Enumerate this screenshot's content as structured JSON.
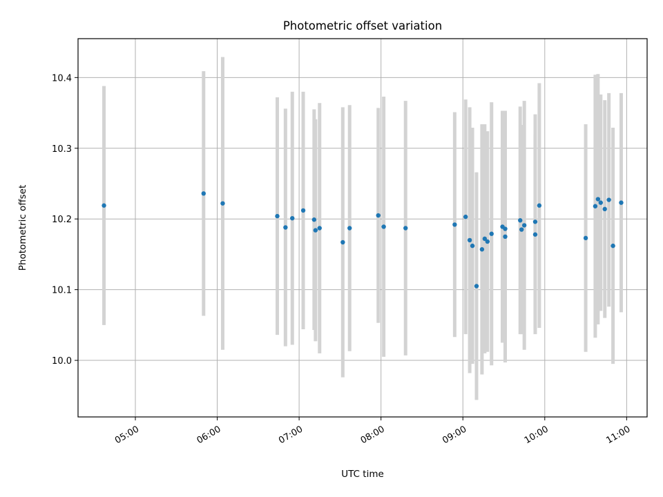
{
  "chart_data": {
    "type": "scatter",
    "title": "Photometric offset variation",
    "xlabel": "UTC time",
    "ylabel": "Photometric offset",
    "x_unit": "UTC time (HH:MM)",
    "xlim": [
      "04:18",
      "11:15"
    ],
    "ylim": [
      9.92,
      10.455
    ],
    "x_ticks": [
      "05:00",
      "06:00",
      "07:00",
      "08:00",
      "09:00",
      "10:00",
      "11:00"
    ],
    "y_ticks": [
      10.0,
      10.1,
      10.2,
      10.3,
      10.4
    ],
    "y_tick_labels": [
      "10.0",
      "10.1",
      "10.2",
      "10.3",
      "10.4"
    ],
    "grid": true,
    "x_tick_rotation_deg": 30,
    "colors": {
      "points": "#1f77b4",
      "error_bars": "#d3d3d3",
      "grid": "#b0b0b0",
      "axes": "#000000"
    },
    "series": [
      {
        "x": [
          "04:37",
          "05:50",
          "06:04",
          "06:44",
          "06:50",
          "06:55",
          "07:03",
          "07:11",
          "07:12",
          "07:15",
          "07:32",
          "07:37",
          "07:58",
          "08:02",
          "08:18",
          "08:54",
          "09:02",
          "09:05",
          "09:07",
          "09:10",
          "09:14",
          "09:16",
          "09:18",
          "09:21",
          "09:29",
          "09:31",
          "09:31",
          "09:42",
          "09:43",
          "09:45",
          "09:53",
          "09:53",
          "09:56",
          "10:30",
          "10:37",
          "10:39",
          "10:41",
          "10:44",
          "10:47",
          "10:50",
          "10:56"
        ],
        "y": [
          10.219,
          10.236,
          10.222,
          10.204,
          10.188,
          10.201,
          10.212,
          10.199,
          10.184,
          10.187,
          10.167,
          10.187,
          10.205,
          10.189,
          10.187,
          10.192,
          10.203,
          10.17,
          10.162,
          10.105,
          10.157,
          10.172,
          10.168,
          10.179,
          10.189,
          10.175,
          10.186,
          10.198,
          10.185,
          10.191,
          10.196,
          10.178,
          10.219,
          10.173,
          10.218,
          10.228,
          10.223,
          10.214,
          10.227,
          10.162,
          10.223
        ],
        "yerr": [
          0.169,
          0.173,
          0.207,
          0.168,
          0.168,
          0.179,
          0.168,
          0.156,
          0.157,
          0.177,
          0.191,
          0.174,
          0.152,
          0.184,
          0.18,
          0.159,
          0.166,
          0.188,
          0.167,
          0.161,
          0.177,
          0.162,
          0.156,
          0.186,
          0.164,
          0.178,
          0.16,
          0.161,
          0.148,
          0.176,
          0.152,
          0.141,
          0.173,
          0.161,
          0.186,
          0.177,
          0.153,
          0.154,
          0.151,
          0.167,
          0.155
        ]
      }
    ]
  }
}
